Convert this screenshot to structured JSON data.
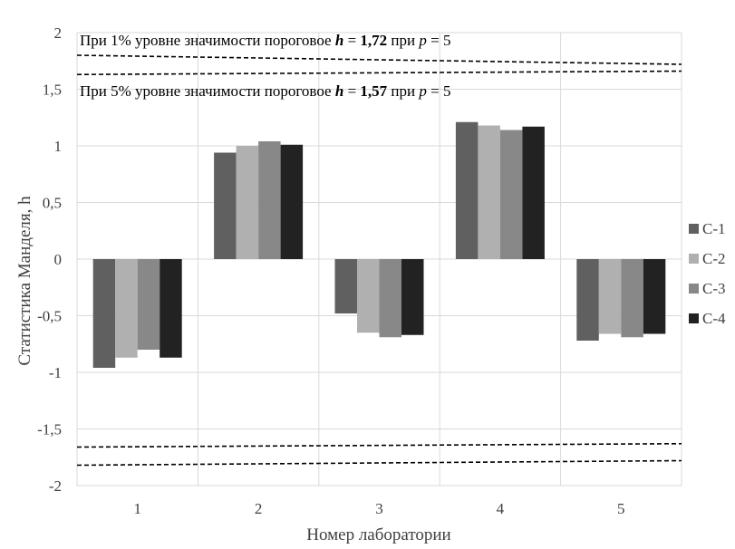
{
  "chart_data": {
    "type": "bar",
    "title": "",
    "xlabel": "Номер лаборатории",
    "ylabel": "Статистика Манделя, h",
    "categories": [
      "1",
      "2",
      "3",
      "4",
      "5"
    ],
    "yticks": [
      "2",
      "1,5",
      "1",
      "0,5",
      "0",
      "-0,5",
      "-1",
      "-1,5",
      "-2"
    ],
    "ylim": [
      -2,
      2
    ],
    "grid": true,
    "legend_position": "right",
    "series": [
      {
        "name": "С-1",
        "color": "#606060",
        "values": [
          -0.96,
          0.94,
          -0.48,
          1.21,
          -0.72
        ]
      },
      {
        "name": "С-2",
        "color": "#b0b0b0",
        "values": [
          -0.87,
          1.0,
          -0.65,
          1.18,
          -0.66
        ]
      },
      {
        "name": "С-3",
        "color": "#888888",
        "values": [
          -0.8,
          1.04,
          -0.69,
          1.14,
          -0.69
        ]
      },
      {
        "name": "С-4",
        "color": "#222222",
        "values": [
          -0.87,
          1.01,
          -0.67,
          1.17,
          -0.66
        ]
      }
    ],
    "annotations": {
      "a1": {
        "part1": "При 1% уровне значимости пороговое ",
        "hsym": "h",
        "eq": " = ",
        "val": "1,72",
        "mid": " при ",
        "psym": "p",
        "end": " = 5"
      },
      "a5": {
        "part1": "При 5% уровне значимости пороговое ",
        "hsym": "h",
        "eq": " = ",
        "val": "1,57",
        "mid": " при ",
        "psym": "p",
        "end": " = 5"
      }
    },
    "threshold_lines": [
      {
        "level": "1%",
        "values": [
          1.8,
          1.72
        ]
      },
      {
        "level": "5%",
        "values": [
          1.63,
          1.66
        ]
      },
      {
        "level": "5%",
        "values": [
          -1.66,
          -1.63
        ]
      },
      {
        "level": "1%",
        "values": [
          -1.82,
          -1.78
        ]
      }
    ]
  }
}
